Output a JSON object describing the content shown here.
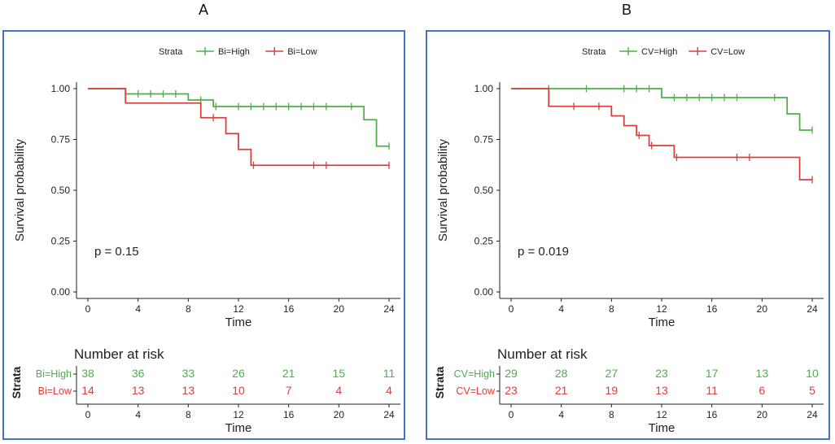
{
  "figure": {
    "panel_labels": [
      "A",
      "B"
    ]
  },
  "colors": {
    "high": "#4DAF4A",
    "low": "#D9403B",
    "frame": "#4472C4",
    "axis": "#222222"
  },
  "chart_data": [
    {
      "type": "line",
      "subtype": "kaplan-meier",
      "panel": "A",
      "legend_title": "Strata",
      "xlabel": "Time",
      "ylabel": "Survival probability",
      "xticks": [
        0,
        4,
        8,
        12,
        16,
        20,
        24
      ],
      "yticks": [
        0,
        0.25,
        0.5,
        0.75,
        1.0
      ],
      "ytick_labels": [
        "0.00",
        "0.25",
        "0.50",
        "0.75",
        "1.00"
      ],
      "xlim": [
        0,
        24
      ],
      "ylim": [
        0,
        1
      ],
      "pvalue": "p = 0.15",
      "series": [
        {
          "name": "Bi=High",
          "color_key": "high",
          "steps": [
            [
              0,
              1.0
            ],
            [
              3,
              0.974
            ],
            [
              8,
              0.944
            ],
            [
              10,
              0.912
            ],
            [
              22,
              0.847
            ],
            [
              23,
              0.717
            ],
            [
              24,
              0.717
            ]
          ],
          "censored": [
            [
              4,
              0.974
            ],
            [
              5,
              0.974
            ],
            [
              6,
              0.974
            ],
            [
              7,
              0.974
            ],
            [
              9,
              0.944
            ],
            [
              10.2,
              0.912
            ],
            [
              12,
              0.912
            ],
            [
              13,
              0.912
            ],
            [
              14,
              0.912
            ],
            [
              15,
              0.912
            ],
            [
              16,
              0.912
            ],
            [
              17,
              0.912
            ],
            [
              18,
              0.912
            ],
            [
              19,
              0.912
            ],
            [
              21,
              0.912
            ],
            [
              24,
              0.717
            ]
          ]
        },
        {
          "name": "Bi=Low",
          "color_key": "low",
          "steps": [
            [
              0,
              1.0
            ],
            [
              3,
              0.929
            ],
            [
              9,
              0.857
            ],
            [
              11,
              0.779
            ],
            [
              12,
              0.701
            ],
            [
              13,
              0.623
            ],
            [
              24,
              0.623
            ]
          ],
          "censored": [
            [
              10,
              0.857
            ],
            [
              13.2,
              0.623
            ],
            [
              18,
              0.623
            ],
            [
              19,
              0.623
            ],
            [
              24,
              0.623
            ]
          ]
        }
      ],
      "risk_table": {
        "title": "Number at risk",
        "strata_label": "Strata",
        "xlabel": "Time",
        "times": [
          0,
          4,
          8,
          12,
          16,
          20,
          24
        ],
        "rows": [
          {
            "name": "Bi=High",
            "color_key": "high",
            "counts": [
              38,
              36,
              33,
              26,
              21,
              15,
              11
            ]
          },
          {
            "name": "Bi=Low",
            "color_key": "low",
            "counts": [
              14,
              13,
              13,
              10,
              7,
              4,
              4
            ]
          }
        ]
      }
    },
    {
      "type": "line",
      "subtype": "kaplan-meier",
      "panel": "B",
      "legend_title": "Strata",
      "xlabel": "Time",
      "ylabel": "Survival probability",
      "xticks": [
        0,
        4,
        8,
        12,
        16,
        20,
        24
      ],
      "yticks": [
        0,
        0.25,
        0.5,
        0.75,
        1.0
      ],
      "ytick_labels": [
        "0.00",
        "0.25",
        "0.50",
        "0.75",
        "1.00"
      ],
      "xlim": [
        0,
        24
      ],
      "ylim": [
        0,
        1
      ],
      "pvalue": "p = 0.019",
      "series": [
        {
          "name": "CV=High",
          "color_key": "high",
          "steps": [
            [
              0,
              1.0
            ],
            [
              12,
              0.956
            ],
            [
              22,
              0.876
            ],
            [
              23,
              0.796
            ],
            [
              24,
              0.796
            ]
          ],
          "censored": [
            [
              3,
              1.0
            ],
            [
              6,
              1.0
            ],
            [
              9,
              1.0
            ],
            [
              10,
              1.0
            ],
            [
              11,
              1.0
            ],
            [
              13,
              0.956
            ],
            [
              14,
              0.956
            ],
            [
              15,
              0.956
            ],
            [
              16,
              0.956
            ],
            [
              17,
              0.956
            ],
            [
              18,
              0.956
            ],
            [
              21,
              0.956
            ],
            [
              24,
              0.796
            ]
          ]
        },
        {
          "name": "CV=Low",
          "color_key": "low",
          "steps": [
            [
              0,
              1.0
            ],
            [
              3,
              0.913
            ],
            [
              8,
              0.866
            ],
            [
              9,
              0.818
            ],
            [
              10,
              0.77
            ],
            [
              11,
              0.72
            ],
            [
              13,
              0.662
            ],
            [
              23,
              0.552
            ],
            [
              24,
              0.552
            ]
          ],
          "censored": [
            [
              5,
              0.913
            ],
            [
              7,
              0.913
            ],
            [
              10.2,
              0.77
            ],
            [
              11.2,
              0.72
            ],
            [
              13.2,
              0.662
            ],
            [
              18,
              0.662
            ],
            [
              19,
              0.662
            ],
            [
              24,
              0.552
            ]
          ]
        }
      ],
      "risk_table": {
        "title": "Number at risk",
        "strata_label": "Strata",
        "xlabel": "Time",
        "times": [
          0,
          4,
          8,
          12,
          16,
          20,
          24
        ],
        "rows": [
          {
            "name": "CV=High",
            "color_key": "high",
            "counts": [
              29,
              28,
              27,
              23,
              17,
              13,
              10
            ]
          },
          {
            "name": "CV=Low",
            "color_key": "low",
            "counts": [
              23,
              21,
              19,
              13,
              11,
              6,
              5
            ]
          }
        ]
      }
    }
  ]
}
